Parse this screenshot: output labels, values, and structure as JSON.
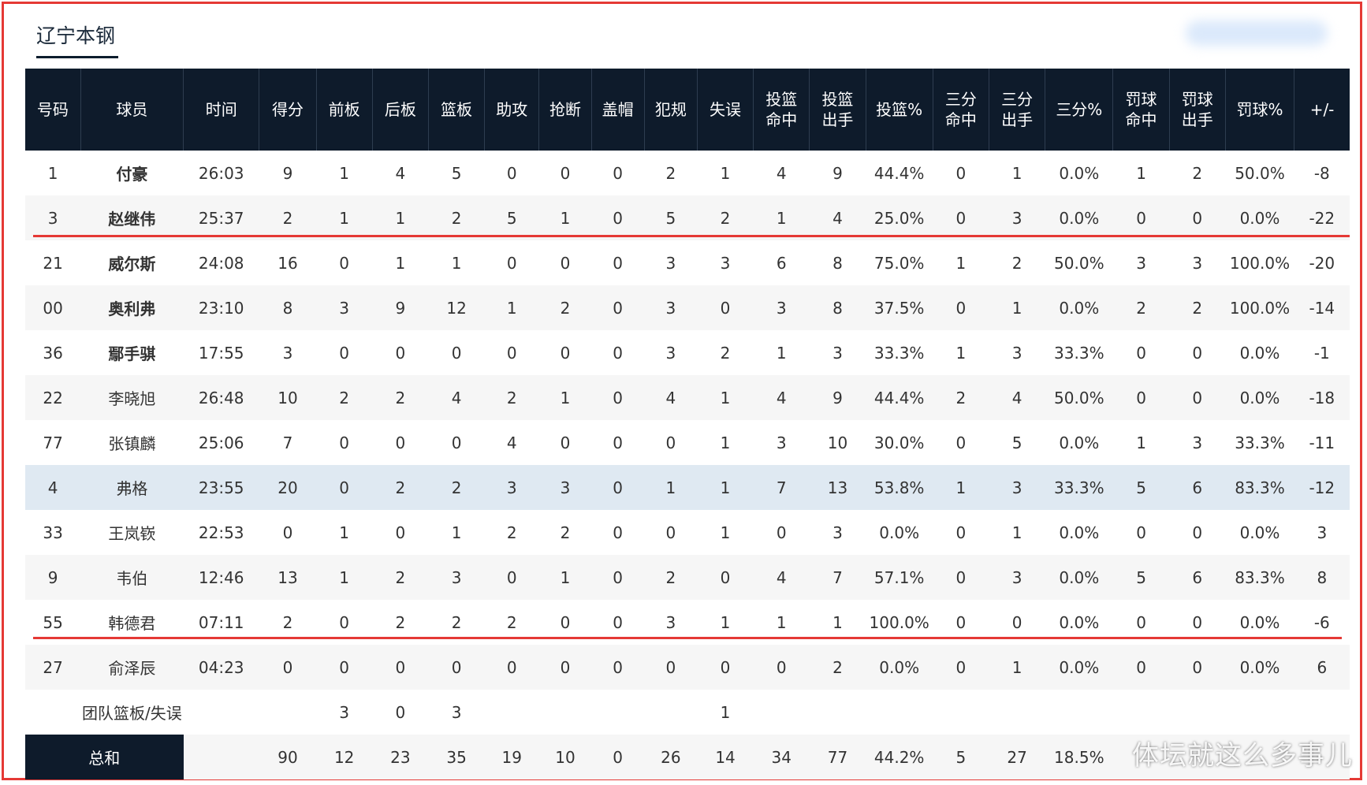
{
  "team_name": "辽宁本钢",
  "columns": [
    "号码",
    "球员",
    "时间",
    "得分",
    "前板",
    "后板",
    "篮板",
    "助攻",
    "抢断",
    "盖帽",
    "犯规",
    "失误",
    "投篮\n命中",
    "投篮\n出手",
    "投篮%",
    "三分\n命中",
    "三分\n出手",
    "三分%",
    "罚球\n命中",
    "罚球\n出手",
    "罚球%",
    "+/-"
  ],
  "players": [
    {
      "cells": [
        "1",
        "付豪",
        "26:03",
        "9",
        "1",
        "4",
        "5",
        "0",
        "0",
        "0",
        "2",
        "1",
        "4",
        "9",
        "44.4%",
        "0",
        "1",
        "0.0%",
        "1",
        "2",
        "50.0%",
        "-8"
      ],
      "starter": true
    },
    {
      "cells": [
        "3",
        "赵继伟",
        "25:37",
        "2",
        "1",
        "1",
        "2",
        "5",
        "1",
        "0",
        "5",
        "2",
        "1",
        "4",
        "25.0%",
        "0",
        "3",
        "0.0%",
        "0",
        "0",
        "0.0%",
        "-22"
      ],
      "starter": true
    },
    {
      "cells": [
        "21",
        "威尔斯",
        "24:08",
        "16",
        "0",
        "1",
        "1",
        "0",
        "0",
        "0",
        "3",
        "3",
        "6",
        "8",
        "75.0%",
        "1",
        "2",
        "50.0%",
        "3",
        "3",
        "100.0%",
        "-20"
      ],
      "starter": true
    },
    {
      "cells": [
        "00",
        "奥利弗",
        "23:10",
        "8",
        "3",
        "9",
        "12",
        "1",
        "2",
        "0",
        "3",
        "0",
        "3",
        "8",
        "37.5%",
        "0",
        "1",
        "0.0%",
        "2",
        "2",
        "100.0%",
        "-14"
      ],
      "starter": true
    },
    {
      "cells": [
        "36",
        "鄢手骐",
        "17:55",
        "3",
        "0",
        "0",
        "0",
        "0",
        "0",
        "0",
        "3",
        "2",
        "1",
        "3",
        "33.3%",
        "1",
        "3",
        "33.3%",
        "0",
        "0",
        "0.0%",
        "-1"
      ],
      "starter": true
    },
    {
      "cells": [
        "22",
        "李晓旭",
        "26:48",
        "10",
        "2",
        "2",
        "4",
        "2",
        "1",
        "0",
        "4",
        "1",
        "4",
        "9",
        "44.4%",
        "2",
        "4",
        "50.0%",
        "0",
        "0",
        "0.0%",
        "-18"
      ],
      "starter": false
    },
    {
      "cells": [
        "77",
        "张镇麟",
        "25:06",
        "7",
        "0",
        "0",
        "0",
        "4",
        "0",
        "0",
        "0",
        "1",
        "3",
        "10",
        "30.0%",
        "0",
        "5",
        "0.0%",
        "1",
        "3",
        "33.3%",
        "-11"
      ],
      "starter": false
    },
    {
      "cells": [
        "4",
        "弗格",
        "23:55",
        "20",
        "0",
        "2",
        "2",
        "3",
        "3",
        "0",
        "1",
        "1",
        "7",
        "13",
        "53.8%",
        "1",
        "3",
        "33.3%",
        "5",
        "6",
        "83.3%",
        "-12"
      ],
      "starter": false,
      "highlight": true
    },
    {
      "cells": [
        "33",
        "王岚嵚",
        "22:53",
        "0",
        "1",
        "0",
        "1",
        "2",
        "2",
        "0",
        "0",
        "1",
        "0",
        "3",
        "0.0%",
        "0",
        "1",
        "0.0%",
        "0",
        "0",
        "0.0%",
        "3"
      ],
      "starter": false
    },
    {
      "cells": [
        "9",
        "韦伯",
        "12:46",
        "13",
        "1",
        "2",
        "3",
        "0",
        "1",
        "0",
        "2",
        "0",
        "4",
        "7",
        "57.1%",
        "0",
        "3",
        "0.0%",
        "5",
        "6",
        "83.3%",
        "8"
      ],
      "starter": false
    },
    {
      "cells": [
        "55",
        "韩德君",
        "07:11",
        "2",
        "0",
        "2",
        "2",
        "2",
        "0",
        "0",
        "3",
        "1",
        "1",
        "1",
        "100.0%",
        "0",
        "0",
        "0.0%",
        "0",
        "0",
        "0.0%",
        "-6"
      ],
      "starter": false
    },
    {
      "cells": [
        "27",
        "俞泽辰",
        "04:23",
        "0",
        "0",
        "0",
        "0",
        "0",
        "0",
        "0",
        "0",
        "0",
        "0",
        "2",
        "0.0%",
        "0",
        "1",
        "0.0%",
        "0",
        "0",
        "0.0%",
        "6"
      ],
      "starter": false
    }
  ],
  "team_row": {
    "label": "团队篮板/失误",
    "offensive_rebounds": "3",
    "defensive_rebounds": "0",
    "rebounds": "3",
    "turnovers": "1"
  },
  "total_row": {
    "label": "总和",
    "cells": [
      "",
      "90",
      "12",
      "23",
      "35",
      "19",
      "10",
      "0",
      "26",
      "14",
      "34",
      "77",
      "44.2%",
      "5",
      "27",
      "18.5%",
      "",
      "",
      "",
      ""
    ]
  },
  "watermark": "体坛就这么多事儿",
  "colors": {
    "header_bg": "#0e1b2b",
    "highlight_row": "#dfe9f2",
    "annotation_red": "#e53935"
  }
}
